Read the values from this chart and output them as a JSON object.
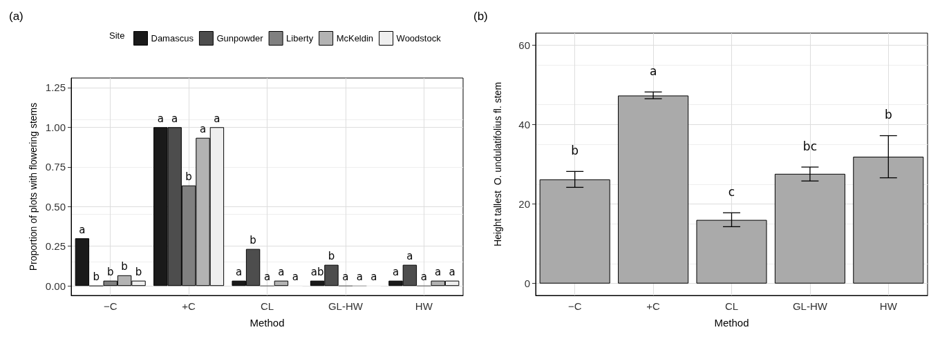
{
  "chart_data": [
    {
      "type": "bar",
      "title": "(a)",
      "xlabel": "Method",
      "ylabel": "Proportion of plots with flowering stems",
      "legend_title": "Site",
      "legend": "top",
      "categories": [
        "−C",
        "+C",
        "CL",
        "GL-HW",
        "HW"
      ],
      "series": [
        {
          "name": "Damascus",
          "color": "#1a1a1a",
          "values": [
            0.3,
            1.0,
            0.033,
            0.033,
            0.033
          ],
          "value_labels": [
            "a",
            "a",
            "a",
            "ab",
            "a"
          ]
        },
        {
          "name": "Gunpowder",
          "color": "#4d4d4d",
          "values": [
            0,
            1.0,
            0.233,
            0.133,
            0.133
          ],
          "value_labels": [
            "b",
            "a",
            "b",
            "b",
            "a"
          ]
        },
        {
          "name": "Liberty",
          "color": "#808080",
          "values": [
            0.033,
            0.633,
            0,
            0,
            0
          ],
          "value_labels": [
            "b",
            "b",
            "a",
            "a",
            "a"
          ]
        },
        {
          "name": "McKeldin",
          "color": "#b3b3b3",
          "values": [
            0.067,
            0.933,
            0.033,
            0,
            0.033
          ],
          "value_labels": [
            "b",
            "a",
            "a",
            "a",
            "a"
          ]
        },
        {
          "name": "Woodstock",
          "color": "#efefef",
          "values": [
            0.033,
            1.0,
            0,
            0,
            0.033
          ],
          "value_labels": [
            "b",
            "a",
            "a",
            "a",
            "a"
          ]
        }
      ],
      "ylim": [
        -0.06,
        1.31
      ],
      "yticks": [
        {
          "value": 0,
          "label": "0.00"
        },
        {
          "value": 0.25,
          "label": "0.25"
        },
        {
          "value": 0.5,
          "label": "0.50"
        },
        {
          "value": 0.75,
          "label": "0.75"
        },
        {
          "value": 1,
          "label": "1.00"
        },
        {
          "value": 1.25,
          "label": "1.25"
        }
      ],
      "grid": true
    },
    {
      "type": "bar",
      "title": "(b)",
      "xlabel": "Method",
      "ylabel": "Height tallest  O. undulatifolius fl. stem",
      "categories": [
        "−C",
        "+C",
        "CL",
        "GL-HW",
        "HW"
      ],
      "series": [
        {
          "color": "#aaaaaa",
          "values": [
            26.2,
            47.3,
            16.0,
            27.6,
            31.9
          ],
          "errors": [
            [
              24.2,
              28.2
            ],
            [
              46.5,
              48.2
            ],
            [
              14.3,
              17.8
            ],
            [
              25.8,
              29.3
            ],
            [
              26.6,
              37.2
            ]
          ],
          "value_labels": [
            "b",
            "a",
            "c",
            "bc",
            "b"
          ]
        }
      ],
      "ylim": [
        -3,
        63
      ],
      "yticks": [
        0,
        20,
        40,
        60
      ],
      "grid": true
    }
  ]
}
